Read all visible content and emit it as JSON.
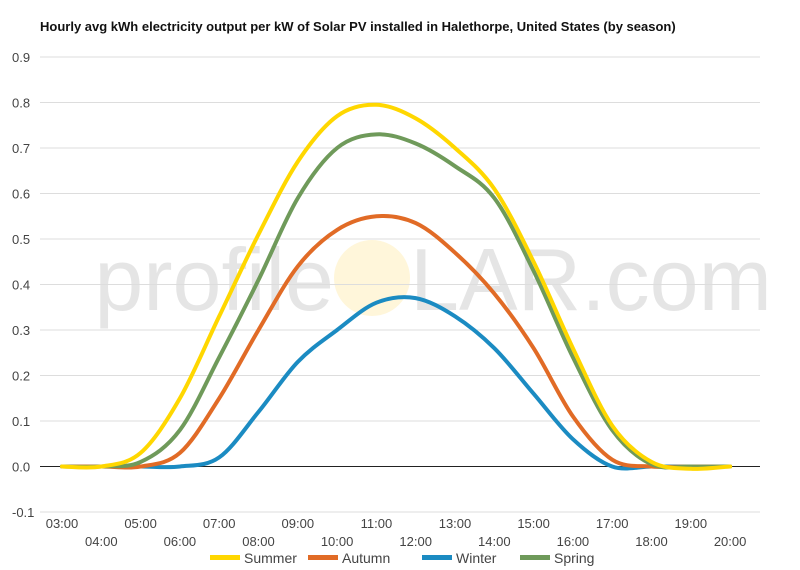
{
  "chart_data": {
    "type": "line",
    "title": "Hourly avg kWh electricity output per kW of Solar PV installed in Halethorpe, United States (by season)",
    "xlabel": "",
    "ylabel": "",
    "x": [
      "03:00",
      "04:00",
      "05:00",
      "06:00",
      "07:00",
      "08:00",
      "09:00",
      "10:00",
      "11:00",
      "12:00",
      "13:00",
      "14:00",
      "15:00",
      "16:00",
      "17:00",
      "18:00",
      "19:00",
      "20:00"
    ],
    "ylim": [
      -0.1,
      0.9
    ],
    "yticks": [
      "-0.1",
      "0.0",
      "0.1",
      "0.2",
      "0.3",
      "0.4",
      "0.5",
      "0.6",
      "0.7",
      "0.8",
      "0.9"
    ],
    "grid": true,
    "legend_position": "bottom",
    "series": [
      {
        "name": "Summer",
        "color": "#ffd700",
        "values": [
          0.0,
          0.0,
          0.03,
          0.15,
          0.33,
          0.51,
          0.67,
          0.77,
          0.795,
          0.765,
          0.7,
          0.61,
          0.45,
          0.26,
          0.09,
          0.01,
          -0.005,
          0.0
        ]
      },
      {
        "name": "Autumn",
        "color": "#e16b26",
        "values": [
          0.0,
          0.0,
          0.0,
          0.03,
          0.15,
          0.3,
          0.44,
          0.52,
          0.55,
          0.535,
          0.47,
          0.38,
          0.26,
          0.11,
          0.015,
          0.0,
          0.0,
          0.0
        ]
      },
      {
        "name": "Winter",
        "color": "#1b8bc2",
        "values": [
          0.0,
          0.0,
          0.0,
          0.0,
          0.02,
          0.12,
          0.23,
          0.3,
          0.36,
          0.37,
          0.33,
          0.26,
          0.16,
          0.06,
          0.0,
          0.0,
          0.0,
          0.0
        ]
      },
      {
        "name": "Spring",
        "color": "#6f9a5a",
        "values": [
          0.0,
          0.0,
          0.01,
          0.08,
          0.24,
          0.41,
          0.59,
          0.7,
          0.73,
          0.71,
          0.66,
          0.59,
          0.43,
          0.24,
          0.08,
          0.005,
          0.0,
          0.0
        ]
      }
    ]
  },
  "watermark": {
    "text_left": "profile",
    "text_right": "LAR.com"
  }
}
